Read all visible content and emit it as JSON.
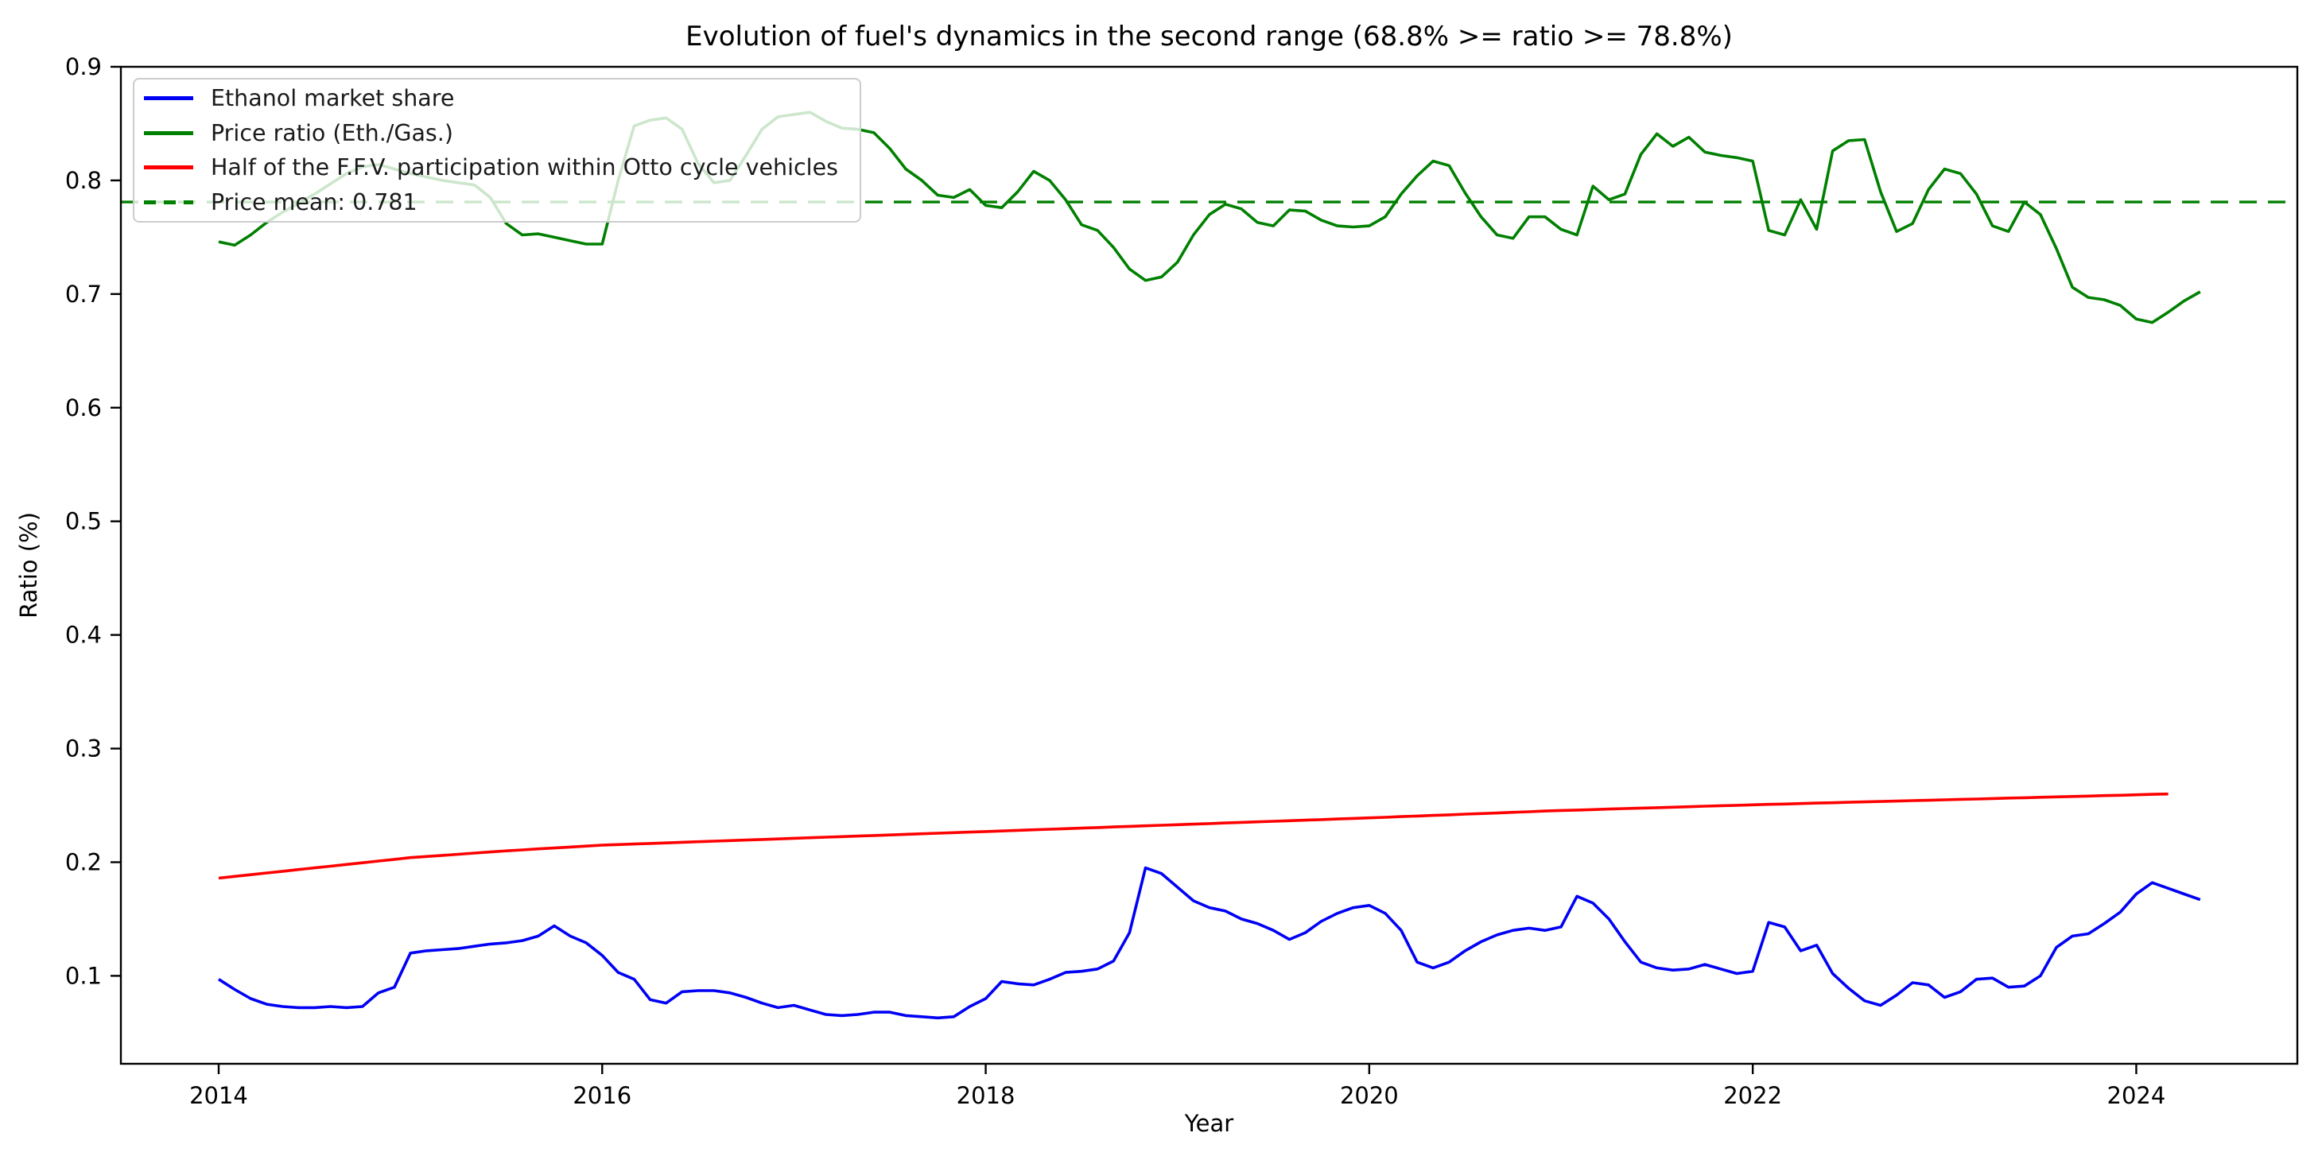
{
  "figure": {
    "title": "Evolution of fuel's dynamics in the second range (68.8% >= ratio >= 78.8%)",
    "xlabel": "Year",
    "ylabel": "Ratio (%)"
  },
  "chart_data": {
    "type": "line",
    "title": "Evolution of fuel's dynamics in the second range (68.8% >= ratio >= 78.8%)",
    "xlabel": "Year",
    "ylabel": "Ratio (%)",
    "grid": false,
    "legend_position": "upper left",
    "xlim": [
      2013.49,
      2024.84
    ],
    "ylim": [
      0.0226,
      0.9
    ],
    "x_ticks": [
      2014,
      2016,
      2018,
      2020,
      2022,
      2024
    ],
    "y_ticks": [
      0.1,
      0.2,
      0.3,
      0.4,
      0.5,
      0.6,
      0.7,
      0.8,
      0.9
    ],
    "x_start_year": 2014,
    "x_step": "monthly",
    "mean_line": {
      "label": "Price mean: 0.781",
      "value": 0.781,
      "color": "#008000",
      "style": "dashed"
    },
    "series": [
      {
        "id": "ethanol-market-share",
        "name": "Ethanol market share",
        "color": "#0000f5",
        "style": "solid",
        "values": [
          0.097,
          0.088,
          0.08,
          0.075,
          0.073,
          0.072,
          0.072,
          0.073,
          0.072,
          0.073,
          0.085,
          0.09,
          0.12,
          0.122,
          0.123,
          0.124,
          0.126,
          0.128,
          0.129,
          0.131,
          0.135,
          0.144,
          0.135,
          0.129,
          0.118,
          0.103,
          0.097,
          0.079,
          0.076,
          0.086,
          0.087,
          0.087,
          0.085,
          0.081,
          0.076,
          0.072,
          0.074,
          0.07,
          0.066,
          0.065,
          0.066,
          0.068,
          0.068,
          0.065,
          0.064,
          0.063,
          0.064,
          0.073,
          0.08,
          0.095,
          0.093,
          0.092,
          0.097,
          0.103,
          0.104,
          0.106,
          0.113,
          0.138,
          0.195,
          0.19,
          0.178,
          0.166,
          0.16,
          0.157,
          0.15,
          0.146,
          0.14,
          0.132,
          0.138,
          0.148,
          0.155,
          0.16,
          0.162,
          0.155,
          0.14,
          0.112,
          0.107,
          0.112,
          0.122,
          0.13,
          0.136,
          0.14,
          0.142,
          0.14,
          0.143,
          0.17,
          0.164,
          0.15,
          0.13,
          0.112,
          0.107,
          0.105,
          0.106,
          0.11,
          0.106,
          0.102,
          0.104,
          0.147,
          0.143,
          0.122,
          0.127,
          0.102,
          0.089,
          0.078,
          0.074,
          0.083,
          0.094,
          0.092,
          0.081,
          0.086,
          0.097,
          0.098,
          0.09,
          0.091,
          0.1,
          0.125,
          0.135,
          0.137,
          0.146,
          0.156,
          0.172,
          0.182,
          0.177,
          0.172,
          0.167
        ]
      },
      {
        "id": "price-ratio",
        "name": "Price ratio (Eth./Gas.)",
        "color": "#008000",
        "style": "solid",
        "values": [
          0.746,
          0.743,
          0.752,
          0.763,
          0.772,
          0.78,
          0.788,
          0.797,
          0.806,
          0.812,
          0.814,
          0.81,
          0.806,
          0.803,
          0.8,
          0.798,
          0.796,
          0.785,
          0.762,
          0.752,
          0.753,
          0.75,
          0.747,
          0.744,
          0.744,
          0.8,
          0.848,
          0.853,
          0.855,
          0.845,
          0.815,
          0.798,
          0.8,
          0.822,
          0.845,
          0.856,
          0.858,
          0.86,
          0.852,
          0.846,
          0.845,
          0.842,
          0.828,
          0.81,
          0.8,
          0.787,
          0.785,
          0.792,
          0.778,
          0.776,
          0.79,
          0.808,
          0.8,
          0.783,
          0.761,
          0.756,
          0.741,
          0.722,
          0.712,
          0.715,
          0.728,
          0.752,
          0.77,
          0.779,
          0.775,
          0.763,
          0.76,
          0.774,
          0.773,
          0.765,
          0.76,
          0.759,
          0.76,
          0.768,
          0.788,
          0.804,
          0.817,
          0.813,
          0.789,
          0.768,
          0.752,
          0.749,
          0.768,
          0.768,
          0.757,
          0.752,
          0.795,
          0.783,
          0.788,
          0.823,
          0.841,
          0.83,
          0.838,
          0.825,
          0.822,
          0.82,
          0.817,
          0.756,
          0.752,
          0.783,
          0.757,
          0.826,
          0.835,
          0.836,
          0.79,
          0.755,
          0.762,
          0.792,
          0.81,
          0.806,
          0.788,
          0.76,
          0.755,
          0.781,
          0.77,
          0.74,
          0.706,
          0.697,
          0.695,
          0.69,
          0.678,
          0.675,
          0.684,
          0.694,
          0.702
        ]
      },
      {
        "id": "ffv-participation-half",
        "name": "Half of the F.F.V. participation within Otto cycle vehicles",
        "color": "#ff0000",
        "style": "solid",
        "values": [
          0.186,
          0.1875,
          0.189,
          0.1905,
          0.192,
          0.1935,
          0.195,
          0.1965,
          0.198,
          0.1995,
          0.201,
          0.2025,
          0.204,
          0.205,
          0.206,
          0.207,
          0.208,
          0.209,
          0.21,
          0.2108,
          0.2117,
          0.2125,
          0.2133,
          0.2142,
          0.215,
          0.2155,
          0.216,
          0.2165,
          0.217,
          0.2175,
          0.218,
          0.2185,
          0.219,
          0.2195,
          0.22,
          0.2205,
          0.221,
          0.2215,
          0.222,
          0.2225,
          0.223,
          0.2235,
          0.224,
          0.2245,
          0.225,
          0.2255,
          0.226,
          0.2265,
          0.227,
          0.2275,
          0.228,
          0.2285,
          0.229,
          0.2295,
          0.23,
          0.2305,
          0.231,
          0.2315,
          0.232,
          0.2325,
          0.233,
          0.2335,
          0.234,
          0.2345,
          0.235,
          0.2355,
          0.236,
          0.2365,
          0.237,
          0.2375,
          0.238,
          0.2385,
          0.239,
          0.2395,
          0.2401,
          0.2406,
          0.2412,
          0.2417,
          0.2423,
          0.2428,
          0.2433,
          0.2439,
          0.2444,
          0.245,
          0.2455,
          0.2459,
          0.2463,
          0.2468,
          0.2472,
          0.2476,
          0.248,
          0.2484,
          0.2488,
          0.2493,
          0.2497,
          0.2501,
          0.2505,
          0.2509,
          0.2512,
          0.2516,
          0.252,
          0.2523,
          0.2527,
          0.2531,
          0.2534,
          0.2538,
          0.2542,
          0.2545,
          0.2549,
          0.2553,
          0.2556,
          0.256,
          0.2564,
          0.2567,
          0.2571,
          0.2575,
          0.2578,
          0.2582,
          0.2586,
          0.2589,
          0.2593,
          0.2597,
          0.26
        ]
      }
    ],
    "legend": [
      {
        "label": "Ethanol market share",
        "color": "#0000f5",
        "style": "solid"
      },
      {
        "label": "Price ratio (Eth./Gas.)",
        "color": "#008000",
        "style": "solid"
      },
      {
        "label": "Half of the F.F.V. participation within Otto cycle vehicles",
        "color": "#ff0000",
        "style": "solid"
      },
      {
        "label": "Price mean: 0.781",
        "color": "#008000",
        "style": "dashed"
      }
    ]
  }
}
